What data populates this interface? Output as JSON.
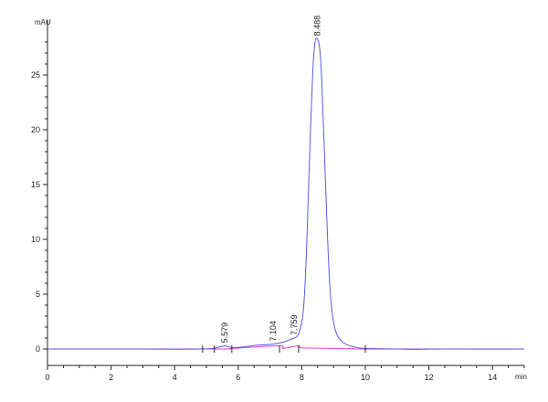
{
  "chart_data": {
    "type": "line",
    "title": "",
    "xlabel": "min",
    "ylabel": "mAU",
    "xlim": [
      0,
      15
    ],
    "ylim": [
      -1.5,
      30
    ],
    "x_ticks": [
      0,
      2,
      4,
      6,
      8,
      10,
      12,
      14
    ],
    "y_ticks": [
      0,
      5,
      10,
      15,
      20,
      25
    ],
    "x_tick_labels": [
      "0",
      "2",
      "4",
      "6",
      "8",
      "10",
      "12",
      "14"
    ],
    "y_tick_labels": [
      "0",
      "5",
      "10",
      "15",
      "20",
      "25"
    ],
    "grid": false,
    "legend": "none",
    "series": [
      {
        "values_x": [
          0,
          1,
          2,
          3,
          4,
          4.8,
          5.2,
          5.45,
          5.58,
          5.7,
          5.9,
          6.2,
          6.6,
          6.9,
          7.1,
          7.3,
          7.5,
          7.7,
          7.76,
          7.9,
          8.05,
          8.15,
          8.25,
          8.35,
          8.42,
          8.49,
          8.56,
          8.62,
          8.7,
          8.8,
          8.9,
          9.05,
          9.3,
          9.7,
          10,
          10.5,
          11,
          11.5,
          12,
          12.5,
          13,
          14,
          15
        ],
        "values_y": [
          0,
          0,
          0,
          0,
          -0.02,
          0,
          0.05,
          0.2,
          0.3,
          0.2,
          0.12,
          0.2,
          0.35,
          0.4,
          0.45,
          0.55,
          0.7,
          0.95,
          1.0,
          1.4,
          3.5,
          9.0,
          18.0,
          25.5,
          28.0,
          28.3,
          27.5,
          25.0,
          19.0,
          11.0,
          5.0,
          1.8,
          0.6,
          0.15,
          0.05,
          0.02,
          0,
          -0.03,
          -0.01,
          0,
          0,
          -0.01,
          0
        ]
      },
      {
        "values_x": [
          0,
          5.25,
          5.8,
          7.3,
          7.4,
          7.9,
          8.05,
          9.6,
          10,
          15
        ],
        "values_y": [
          0,
          0,
          0.05,
          0.3,
          0.05,
          0.3,
          0.1,
          0.03,
          0,
          0
        ]
      }
    ],
    "peaks": [
      {
        "label": "5.579",
        "x": 5.579,
        "y": 0.3
      },
      {
        "label": "7.104",
        "x": 7.104,
        "y": 0.45
      },
      {
        "label": "7.759",
        "x": 7.759,
        "y": 1.0
      },
      {
        "label": "8.488",
        "x": 8.488,
        "y": 28.3
      }
    ],
    "integration_marks_x": [
      4.88,
      5.25,
      5.8,
      7.3,
      7.9,
      10.0
    ],
    "colors": {
      "signal": "#5a5ae6",
      "baseline": "#e040d0",
      "axis": "#222222"
    }
  }
}
